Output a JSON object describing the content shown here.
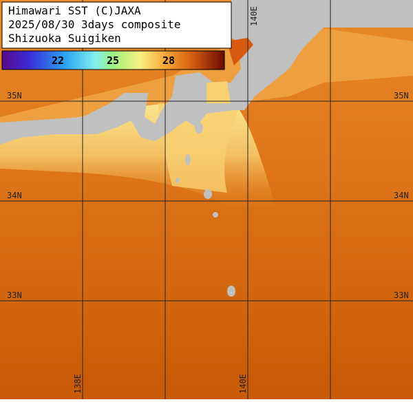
{
  "header": {
    "lines": [
      "Himawari SST (C)JAXA",
      "2025/08/30 3days composite",
      "Shizuoka Suigiken"
    ]
  },
  "colorbar": {
    "labels": [
      22,
      25,
      28
    ]
  },
  "grid": {
    "lat_labels_left": [
      "35N",
      "34N",
      "33N"
    ],
    "lat_labels_right": [
      "35N",
      "34N",
      "33N"
    ],
    "lon_label_top": "140E",
    "lon_labels_bottom": [
      "138E",
      "140E"
    ]
  }
}
